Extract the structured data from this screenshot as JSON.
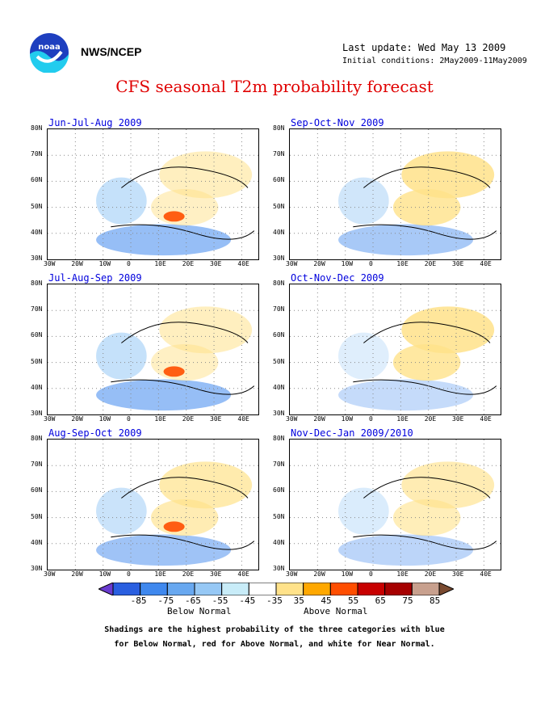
{
  "header": {
    "org": "NWS/NCEP",
    "last_update": "Last update: Wed May 13 2009",
    "initial_conditions": "Initial conditions: 2May2009-11May2009",
    "title": "CFS seasonal T2m probability forecast",
    "logo_text": "noaa"
  },
  "axes": {
    "lat_labels": [
      "80N",
      "70N",
      "60N",
      "50N",
      "40N",
      "30N"
    ],
    "lon_labels": [
      "30W",
      "20W",
      "10W",
      "0",
      "10E",
      "20E",
      "30E",
      "40E"
    ]
  },
  "panels": [
    {
      "title": "Jun-Jul-Aug 2009"
    },
    {
      "title": "Sep-Oct-Nov 2009"
    },
    {
      "title": "Jul-Aug-Sep 2009"
    },
    {
      "title": "Oct-Nov-Dec 2009"
    },
    {
      "title": "Aug-Sep-Oct 2009"
    },
    {
      "title": "Nov-Dec-Jan 2009/2010"
    }
  ],
  "legend": {
    "ticks": [
      "-85",
      "-75",
      "-65",
      "-55",
      "-45",
      "-35",
      "35",
      "45",
      "55",
      "65",
      "75",
      "85"
    ],
    "below_label": "Below Normal",
    "above_label": "Above Normal",
    "colors": [
      "#6a3bd0",
      "#2a5fe0",
      "#3f88ee",
      "#68a8f0",
      "#96c8f5",
      "#c8ecf8",
      "#ffffff",
      "#ffe28a",
      "#ffa800",
      "#ff4e00",
      "#c80000",
      "#a60000",
      "#c8a08e",
      "#7a4a30"
    ]
  },
  "footnote": {
    "line1": "Shadings are the highest probability of the three categories with blue",
    "line2": "for Below Normal, red for Above Normal, and white for Near Normal."
  },
  "map_data": [
    {
      "blue_strength": 0.55,
      "orange_strength": 0.35,
      "hot_spot": true
    },
    {
      "blue_strength": 0.45,
      "orange_strength": 0.65,
      "hot_spot": false
    },
    {
      "blue_strength": 0.55,
      "orange_strength": 0.35,
      "hot_spot": true
    },
    {
      "blue_strength": 0.3,
      "orange_strength": 0.65,
      "hot_spot": false
    },
    {
      "blue_strength": 0.5,
      "orange_strength": 0.5,
      "hot_spot": true
    },
    {
      "blue_strength": 0.35,
      "orange_strength": 0.45,
      "hot_spot": false
    }
  ]
}
